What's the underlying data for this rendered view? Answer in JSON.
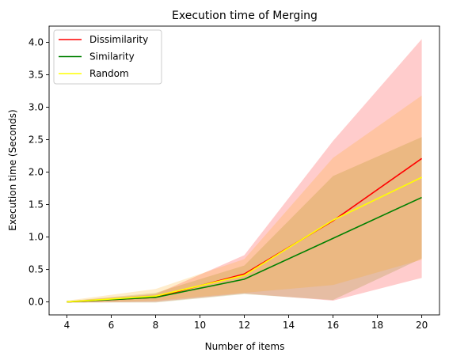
{
  "chart_data": {
    "type": "line",
    "title": "Execution time of Merging",
    "xlabel": "Number of items",
    "ylabel": "Execution time (Seconds)",
    "xlim": [
      3.2,
      20.8
    ],
    "ylim": [
      -0.2,
      4.25
    ],
    "xticks": [
      4,
      6,
      8,
      10,
      12,
      14,
      16,
      18,
      20
    ],
    "yticks": [
      0.0,
      0.5,
      1.0,
      1.5,
      2.0,
      2.5,
      3.0,
      3.5,
      4.0
    ],
    "grid": false,
    "legend_position": "top-left",
    "x": [
      4,
      8,
      12,
      16,
      20
    ],
    "series": [
      {
        "name": "Dissimilarity",
        "color": "#ff0000",
        "band_color": "#ff0000",
        "values": [
          0.0,
          0.07,
          0.43,
          1.25,
          2.21
        ],
        "lower": [
          -0.01,
          0.0,
          0.13,
          0.02,
          0.37
        ],
        "upper": [
          0.01,
          0.12,
          0.72,
          2.48,
          4.05
        ]
      },
      {
        "name": "Similarity",
        "color": "#008000",
        "band_color": "#808000",
        "values": [
          0.0,
          0.07,
          0.35,
          0.98,
          1.61
        ],
        "lower": [
          -0.01,
          -0.01,
          0.12,
          0.03,
          0.67
        ],
        "upper": [
          0.01,
          0.14,
          0.56,
          1.94,
          2.54
        ]
      },
      {
        "name": "Random",
        "color": "#ffff00",
        "band_color": "#ffa500",
        "values": [
          0.0,
          0.09,
          0.41,
          1.26,
          1.92
        ],
        "lower": [
          -0.01,
          0.02,
          0.14,
          0.26,
          0.65
        ],
        "upper": [
          0.02,
          0.2,
          0.66,
          2.22,
          3.18
        ]
      }
    ]
  }
}
